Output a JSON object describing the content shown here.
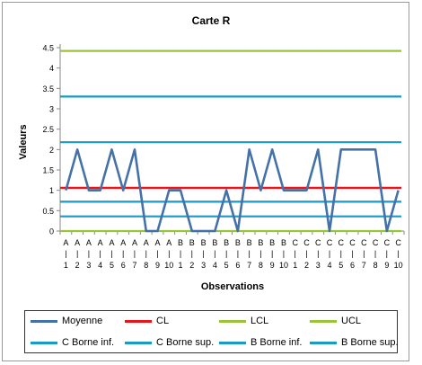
{
  "chart_data": {
    "type": "line",
    "title": "Carte R",
    "xlabel": "Observations",
    "ylabel": "Valeurs",
    "ylim": [
      0,
      4.5
    ],
    "yticks": [
      "0",
      "0.5",
      "1",
      "1.5",
      "2",
      "2.5",
      "3",
      "3.5",
      "4",
      "4.5"
    ],
    "grid": false,
    "legend_position": "bottom",
    "x_groups": [
      "A",
      "A",
      "A",
      "A",
      "A",
      "A",
      "A",
      "A",
      "A",
      "A",
      "B",
      "B",
      "B",
      "B",
      "B",
      "B",
      "B",
      "B",
      "B",
      "B",
      "C",
      "C",
      "C",
      "C",
      "C",
      "C",
      "C",
      "C",
      "C",
      "C"
    ],
    "x_numbers": [
      "1",
      "2",
      "3",
      "4",
      "5",
      "6",
      "7",
      "8",
      "9",
      "10",
      "1",
      "2",
      "3",
      "4",
      "5",
      "6",
      "7",
      "8",
      "9",
      "10",
      "1",
      "2",
      "3",
      "4",
      "5",
      "6",
      "7",
      "8",
      "9",
      "10"
    ],
    "series": [
      {
        "name": "Moyenne",
        "color": "#4472A8",
        "kind": "data",
        "values": [
          1,
          2,
          1,
          1,
          2,
          1,
          2,
          0,
          0,
          1,
          1,
          0,
          0,
          0,
          1,
          0,
          2,
          1,
          2,
          1,
          1,
          1,
          2,
          0,
          2,
          2,
          2,
          2,
          0,
          1
        ]
      },
      {
        "name": "CL",
        "color": "#E8161B",
        "kind": "constant",
        "value": 1.06
      },
      {
        "name": "LCL",
        "color": "#9BC43A",
        "kind": "constant",
        "value": 0
      },
      {
        "name": "UCL",
        "color": "#9BC43A",
        "kind": "constant",
        "value": 4.42
      },
      {
        "name": "C Borne inf.",
        "color": "#1A9AC4",
        "kind": "constant",
        "value": 0.72
      },
      {
        "name": "C Borne sup.",
        "color": "#1A9AC4",
        "kind": "constant",
        "value": 2.18
      },
      {
        "name": "B Borne inf.",
        "color": "#1A9AC4",
        "kind": "constant",
        "value": 0.36
      },
      {
        "name": "B Borne sup.",
        "color": "#1A9AC4",
        "kind": "constant",
        "value": 3.3
      }
    ]
  }
}
